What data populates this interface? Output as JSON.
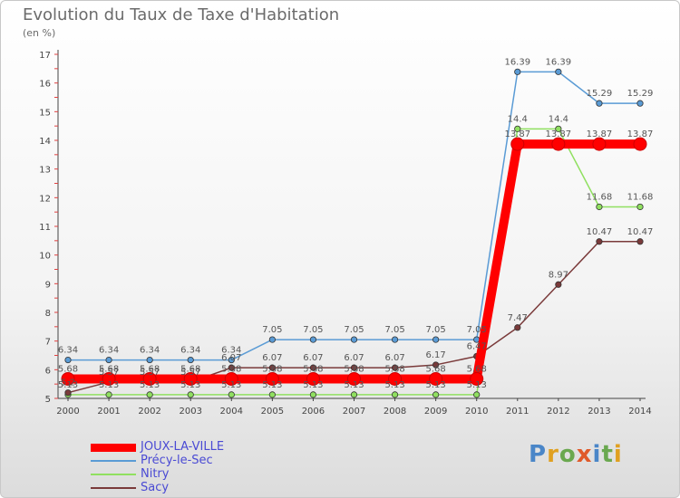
{
  "title": "Evolution du Taux de Taxe d'Habitation",
  "subtitle": "(en %)",
  "logo": {
    "text": "Proxiti",
    "letter_colors": [
      "#4a86c8",
      "#e0a020",
      "#6aa84f",
      "#e05a2a",
      "#4a86c8",
      "#6aa84f",
      "#e0a020"
    ]
  },
  "chart_data": {
    "type": "line",
    "x": [
      "2000",
      "2001",
      "2002",
      "2003",
      "2004",
      "2005",
      "2006",
      "2007",
      "2008",
      "2009",
      "2010",
      "2011",
      "2012",
      "2013",
      "2014"
    ],
    "ylim": [
      5,
      17
    ],
    "yticks": [
      "5",
      "6",
      "7",
      "8",
      "9",
      "10",
      "11",
      "12",
      "13",
      "14",
      "15",
      "16",
      "17"
    ],
    "grid": false,
    "legend_position": "bottom-left",
    "series": [
      {
        "name": "JOUX-LA-VILLE",
        "color": "#ff0000",
        "thick": true,
        "values": [
          5.68,
          5.68,
          5.68,
          5.68,
          5.68,
          5.68,
          5.68,
          5.68,
          5.68,
          5.68,
          5.68,
          13.87,
          13.87,
          13.87,
          13.87
        ],
        "labels": [
          "5.68",
          "5.68",
          "5.68",
          "5.68",
          "5.68",
          "5.68",
          "5.68",
          "5.68",
          "5.68",
          "5.68",
          "5.68",
          "13.87",
          "13.87",
          "13.87",
          "13.87"
        ]
      },
      {
        "name": "Précy-le-Sec",
        "color": "#5a9bd5",
        "thick": false,
        "values": [
          6.34,
          6.34,
          6.34,
          6.34,
          6.34,
          7.05,
          7.05,
          7.05,
          7.05,
          7.05,
          7.05,
          16.39,
          16.39,
          15.29,
          15.29
        ],
        "labels": [
          "6.34",
          "6.34",
          "6.34",
          "6.34",
          "6.34",
          "7.05",
          "7.05",
          "7.05",
          "7.05",
          "7.05",
          "7.05",
          "16.39",
          "16.39",
          "15.29",
          "15.29"
        ]
      },
      {
        "name": "Nitry",
        "color": "#90e060",
        "thick": false,
        "values": [
          5.13,
          5.13,
          5.13,
          5.13,
          5.13,
          5.13,
          5.13,
          5.13,
          5.13,
          5.13,
          5.13,
          14.4,
          14.4,
          11.68,
          11.68
        ],
        "labels": [
          "5.13",
          "5.13",
          "5.13",
          "5.13",
          "5.13",
          "5.13",
          "5.13",
          "5.13",
          "5.13",
          "5.13",
          "5.13",
          "14.4",
          "14.4",
          "11.68",
          "11.68"
        ]
      },
      {
        "name": "Sacy",
        "color": "#7a3a3a",
        "thick": false,
        "values": [
          5.2,
          5.57,
          5.57,
          5.57,
          6.07,
          6.07,
          6.07,
          6.07,
          6.07,
          6.17,
          6.47,
          7.47,
          8.97,
          10.47,
          10.47
        ],
        "labels": [
          "5.2",
          "5.57",
          "5.57",
          "5.57",
          "6.07",
          "6.07",
          "6.07",
          "6.07",
          "6.07",
          "6.17",
          "6.47",
          "7.47",
          "8.97",
          "10.47",
          "10.47"
        ]
      }
    ]
  }
}
